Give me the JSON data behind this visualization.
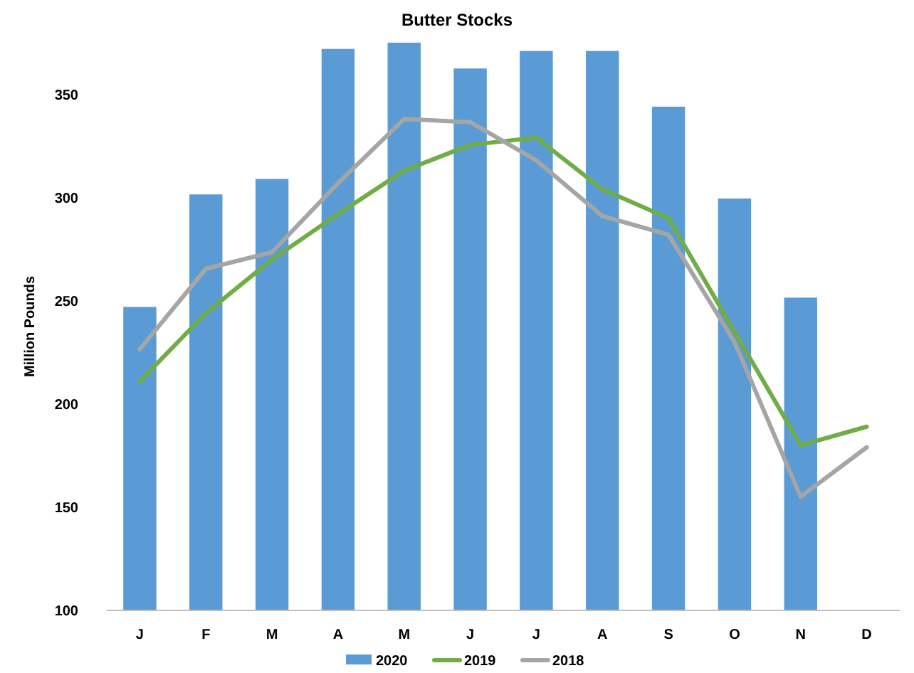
{
  "chart_data": {
    "type": "bar",
    "title": "Butter Stocks",
    "ylabel": "Million Pounds",
    "categories": [
      "J",
      "F",
      "M",
      "A",
      "M",
      "J",
      "J",
      "A",
      "S",
      "O",
      "N",
      "D"
    ],
    "series": [
      {
        "name": "2020",
        "color": "#5b9bd5",
        "values": [
          247,
          301.5,
          309,
          372,
          375,
          362.5,
          371,
          371,
          344,
          299.5,
          251.5,
          null
        ]
      },
      {
        "name": "2019",
        "type": "line",
        "color": "#70ad47",
        "values": [
          211,
          244,
          270,
          292,
          313,
          325.5,
          329,
          304,
          290,
          235,
          180,
          189
        ]
      },
      {
        "name": "2018",
        "type": "line",
        "color": "#a5a5a5",
        "values": [
          226.5,
          265.5,
          273.5,
          307,
          338,
          336.5,
          318,
          291,
          282,
          230,
          155,
          179
        ]
      }
    ],
    "ylim": [
      100,
      375
    ],
    "yticks": [
      100,
      150,
      200,
      250,
      300,
      350
    ],
    "grid": false,
    "legend": "bottom",
    "marker": "none",
    "line_style": "solid"
  }
}
